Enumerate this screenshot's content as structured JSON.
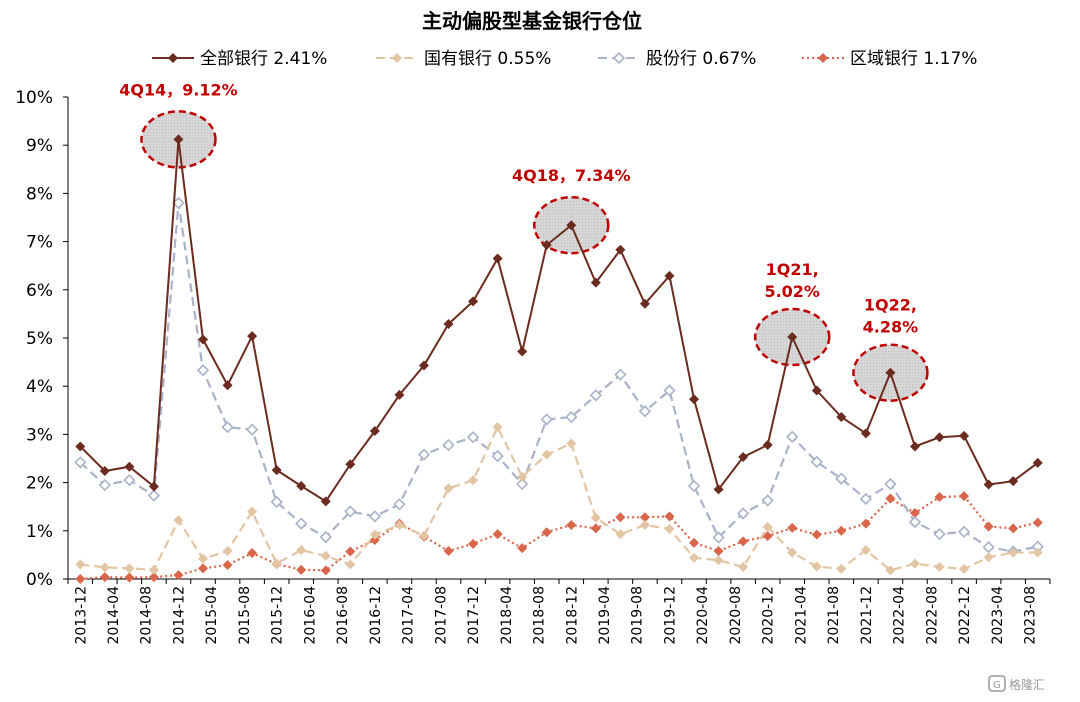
{
  "chart_data": {
    "type": "line",
    "title": "主动偏股型基金银行仓位",
    "xlabel": "",
    "ylabel": "",
    "ylim": [
      0,
      10
    ],
    "y_ticks": [
      "0%",
      "1%",
      "2%",
      "3%",
      "4%",
      "5%",
      "6%",
      "7%",
      "8%",
      "9%",
      "10%"
    ],
    "x_tick_labels": [
      "2013-12",
      "2014-04",
      "2014-08",
      "2014-12",
      "2015-04",
      "2015-08",
      "2015-12",
      "2016-04",
      "2016-08",
      "2016-12",
      "2017-04",
      "2017-08",
      "2017-12",
      "2018-04",
      "2018-08",
      "2018-12",
      "2019-04",
      "2019-08",
      "2019-12",
      "2020-04",
      "2020-08",
      "2020-12",
      "2021-04",
      "2021-08",
      "2021-12",
      "2022-04",
      "2022-08",
      "2022-12",
      "2023-04",
      "2023-08"
    ],
    "grid": false,
    "legend_position": "top",
    "series": [
      {
        "name": "全部银行",
        "legend_value": "2.41%",
        "color": "#6b2c1f",
        "style": "solid",
        "marker": "filled-diamond",
        "values": [
          2.75,
          2.24,
          2.33,
          1.92,
          9.12,
          4.97,
          4.02,
          5.04,
          2.26,
          1.93,
          1.61,
          2.38,
          3.07,
          3.82,
          4.43,
          5.29,
          5.76,
          6.65,
          4.72,
          6.93,
          7.34,
          6.15,
          6.83,
          5.71,
          6.29,
          3.73,
          1.86,
          2.53,
          2.78,
          5.02,
          3.91,
          3.36,
          3.02,
          4.28,
          2.75,
          2.94,
          2.97,
          1.96,
          2.03,
          2.41
        ]
      },
      {
        "name": "国有银行",
        "legend_value": "0.55%",
        "color": "#e2c5a2",
        "style": "dashed",
        "marker": "filled-diamond",
        "values": [
          0.3,
          0.24,
          0.22,
          0.19,
          1.22,
          0.42,
          0.58,
          1.4,
          0.32,
          0.6,
          0.48,
          0.3,
          0.92,
          1.12,
          0.9,
          1.88,
          2.05,
          3.15,
          2.12,
          2.58,
          2.81,
          1.27,
          0.93,
          1.12,
          1.04,
          0.44,
          0.39,
          0.25,
          1.08,
          0.55,
          0.26,
          0.21,
          0.6,
          0.18,
          0.32,
          0.25,
          0.21,
          0.45,
          0.55,
          0.55
        ]
      },
      {
        "name": "股份行",
        "legend_value": "0.67%",
        "color": "#a9b2c8",
        "style": "dashed",
        "marker": "hollow-diamond",
        "values": [
          2.42,
          1.95,
          2.05,
          1.73,
          7.8,
          4.33,
          3.15,
          3.1,
          1.6,
          1.15,
          0.87,
          1.4,
          1.3,
          1.55,
          2.58,
          2.78,
          2.94,
          2.55,
          1.97,
          3.31,
          3.36,
          3.81,
          4.24,
          3.48,
          3.91,
          1.93,
          0.86,
          1.36,
          1.63,
          2.95,
          2.43,
          2.08,
          1.66,
          1.97,
          1.18,
          0.93,
          0.98,
          0.66,
          0.57,
          0.67
        ]
      },
      {
        "name": "区域银行",
        "legend_value": "1.17%",
        "color": "#d9654a",
        "style": "dotted",
        "marker": "filled-diamond",
        "values": [
          0.0,
          0.04,
          0.03,
          0.04,
          0.08,
          0.22,
          0.29,
          0.54,
          0.31,
          0.19,
          0.18,
          0.57,
          0.81,
          1.15,
          0.88,
          0.58,
          0.73,
          0.93,
          0.64,
          0.97,
          1.12,
          1.05,
          1.28,
          1.28,
          1.3,
          0.75,
          0.58,
          0.78,
          0.89,
          1.06,
          0.92,
          1.0,
          1.15,
          1.67,
          1.37,
          1.7,
          1.72,
          1.09,
          1.05,
          1.17
        ]
      }
    ],
    "annotations": [
      {
        "label": "4Q14，9.12%",
        "index": 4,
        "value": 9.12
      },
      {
        "label": "4Q18，7.34%",
        "index": 20,
        "value": 7.34
      },
      {
        "label": "1Q21,\n5.02%",
        "index": 29,
        "value": 5.02
      },
      {
        "label": "1Q22,\n4.28%",
        "index": 33,
        "value": 4.28
      }
    ]
  },
  "watermark": {
    "text": "格隆汇",
    "icon": "gelonghui-logo-icon"
  }
}
